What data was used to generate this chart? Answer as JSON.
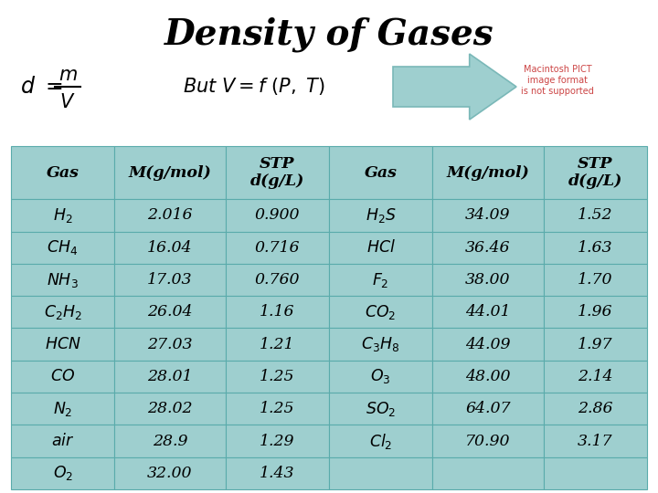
{
  "title": "Density of Gases",
  "bg_color": "#ffffff",
  "table_bg": "#9ecfcf",
  "table_border": "#5aabab",
  "header_row": [
    "Gas",
    "M(g/mol)",
    "STP\nd(g/L)",
    "Gas",
    "M(g/mol)",
    "STP\nd(g/L)"
  ],
  "rows": [
    [
      "$H_2$",
      "2.016",
      "0.900",
      "$H_2S$",
      "34.09",
      "1.52"
    ],
    [
      "$CH_4$",
      "16.04",
      "0.716",
      "$HCl$",
      "36.46",
      "1.63"
    ],
    [
      "$NH_3$",
      "17.03",
      "0.760",
      "$F_2$",
      "38.00",
      "1.70"
    ],
    [
      "$C_2H_2$",
      "26.04",
      "1.16",
      "$CO_2$",
      "44.01",
      "1.96"
    ],
    [
      "$HCN$",
      "27.03",
      "1.21",
      "$C_3H_8$",
      "44.09",
      "1.97"
    ],
    [
      "$CO$",
      "28.01",
      "1.25",
      "$O_3$",
      "48.00",
      "2.14"
    ],
    [
      "$N_2$",
      "28.02",
      "1.25",
      "$SO_2$",
      "64.07",
      "2.86"
    ],
    [
      "$air$",
      "28.9",
      "1.29",
      "$Cl_2$",
      "70.90",
      "3.17"
    ],
    [
      "$O_2$",
      "32.00",
      "1.43",
      "",
      "",
      ""
    ]
  ],
  "title_fontsize": 28,
  "table_fontsize": 12.5,
  "arrow_color": "#9ecfcf",
  "arrow_edge": "#7ab8b8",
  "macintosh_text": "Macintosh PICT\nimage format\nis not supported",
  "macintosh_color": "#cc4444"
}
